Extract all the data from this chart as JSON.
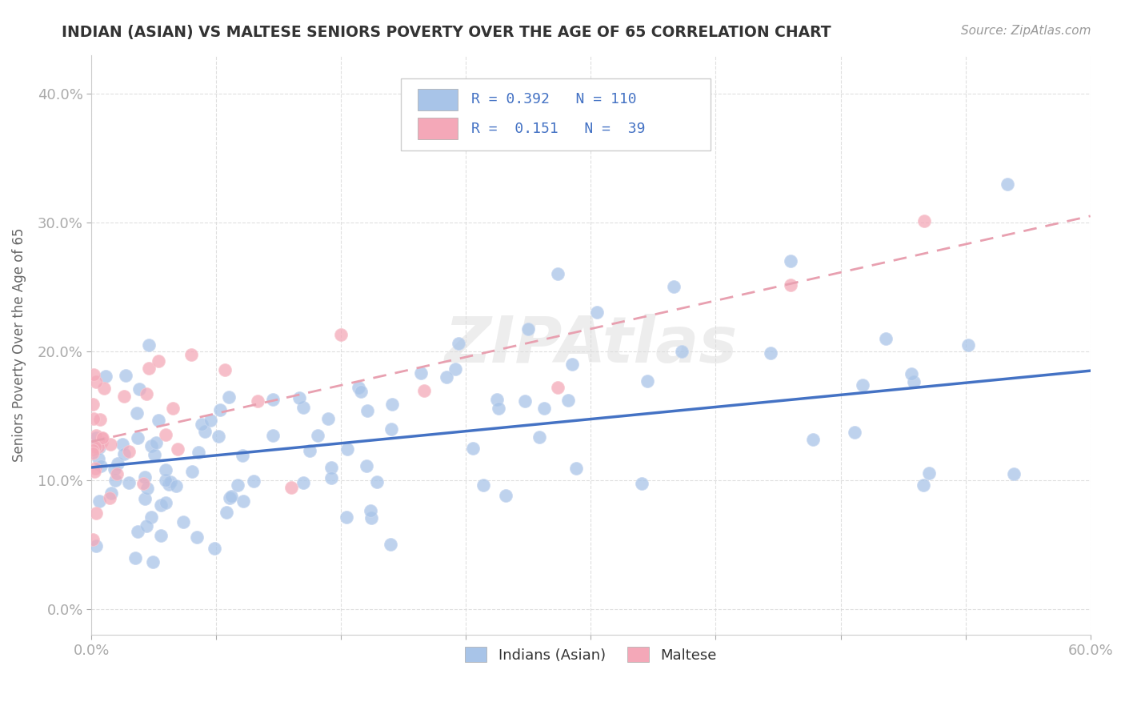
{
  "title": "INDIAN (ASIAN) VS MALTESE SENIORS POVERTY OVER THE AGE OF 65 CORRELATION CHART",
  "source": "Source: ZipAtlas.com",
  "ylabel": "Seniors Poverty Over the Age of 65",
  "xlim": [
    0.0,
    0.6
  ],
  "ylim": [
    -0.02,
    0.43
  ],
  "yticks": [
    0.0,
    0.1,
    0.2,
    0.3,
    0.4
  ],
  "ytick_labels": [
    "0.0%",
    "10.0%",
    "20.0%",
    "30.0%",
    "40.0%"
  ],
  "xticks": [
    0.0,
    0.075,
    0.15,
    0.225,
    0.3,
    0.375,
    0.45,
    0.525,
    0.6
  ],
  "legend_indian_r": "0.392",
  "legend_indian_n": "110",
  "legend_maltese_r": "0.151",
  "legend_maltese_n": "39",
  "legend_label_indian": "Indians (Asian)",
  "legend_label_maltese": "Maltese",
  "indian_color": "#a8c4e8",
  "maltese_color": "#f4a8b8",
  "trend_indian_color": "#4472c4",
  "trend_maltese_color": "#e8a0b0",
  "watermark": "ZIPAtlas",
  "background_color": "#ffffff",
  "trend_indian_x0": 0.0,
  "trend_indian_y0": 0.11,
  "trend_indian_x1": 0.6,
  "trend_indian_y1": 0.185,
  "trend_maltese_x0": 0.0,
  "trend_maltese_y0": 0.13,
  "trend_maltese_x1": 0.6,
  "trend_maltese_y1": 0.305
}
